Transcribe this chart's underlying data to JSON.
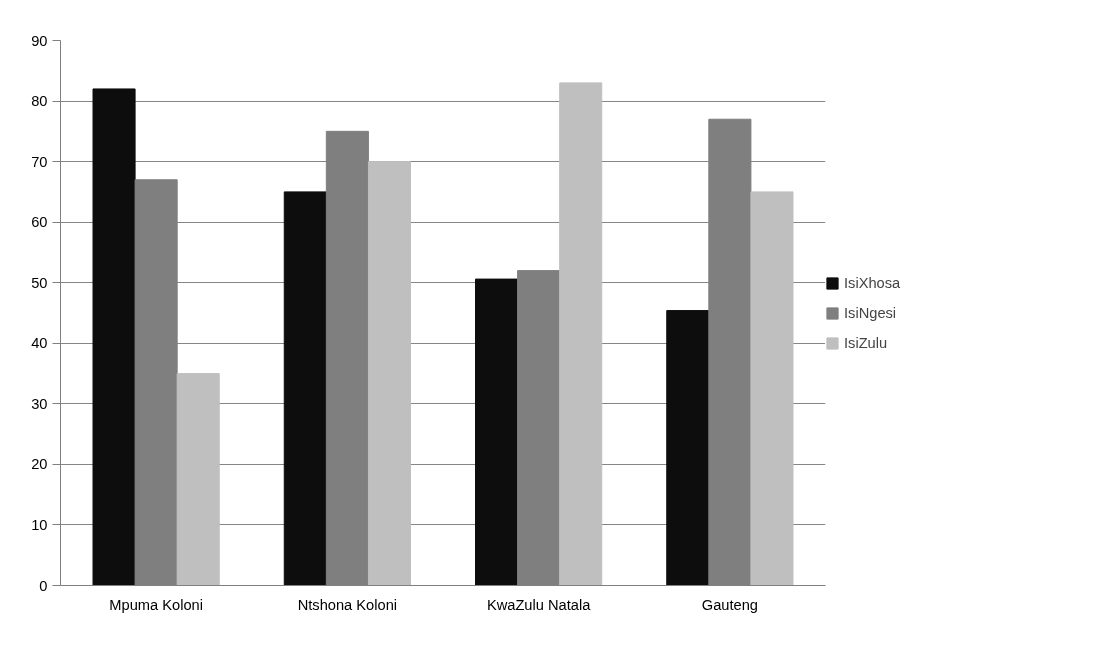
{
  "chart_data": {
    "type": "bar",
    "categories": [
      "Mpuma Koloni",
      "Ntshona Koloni",
      "KwaZulu Natala",
      "Gauteng"
    ],
    "series": [
      {
        "name": "IsiXhosa",
        "color": "#0d0d0d",
        "values": [
          82,
          65,
          50.6,
          45.4
        ]
      },
      {
        "name": "IsiNgesi",
        "color": "#7f7f7f",
        "values": [
          67,
          75,
          52,
          77
        ]
      },
      {
        "name": "IsiZulu",
        "color": "#bfbfbf",
        "values": [
          35,
          70,
          83,
          65
        ]
      }
    ],
    "ylim": [
      0,
      90
    ],
    "yticks": [
      0,
      10,
      20,
      30,
      40,
      50,
      60,
      70,
      80,
      90
    ],
    "grid": "y",
    "legend": "right"
  }
}
